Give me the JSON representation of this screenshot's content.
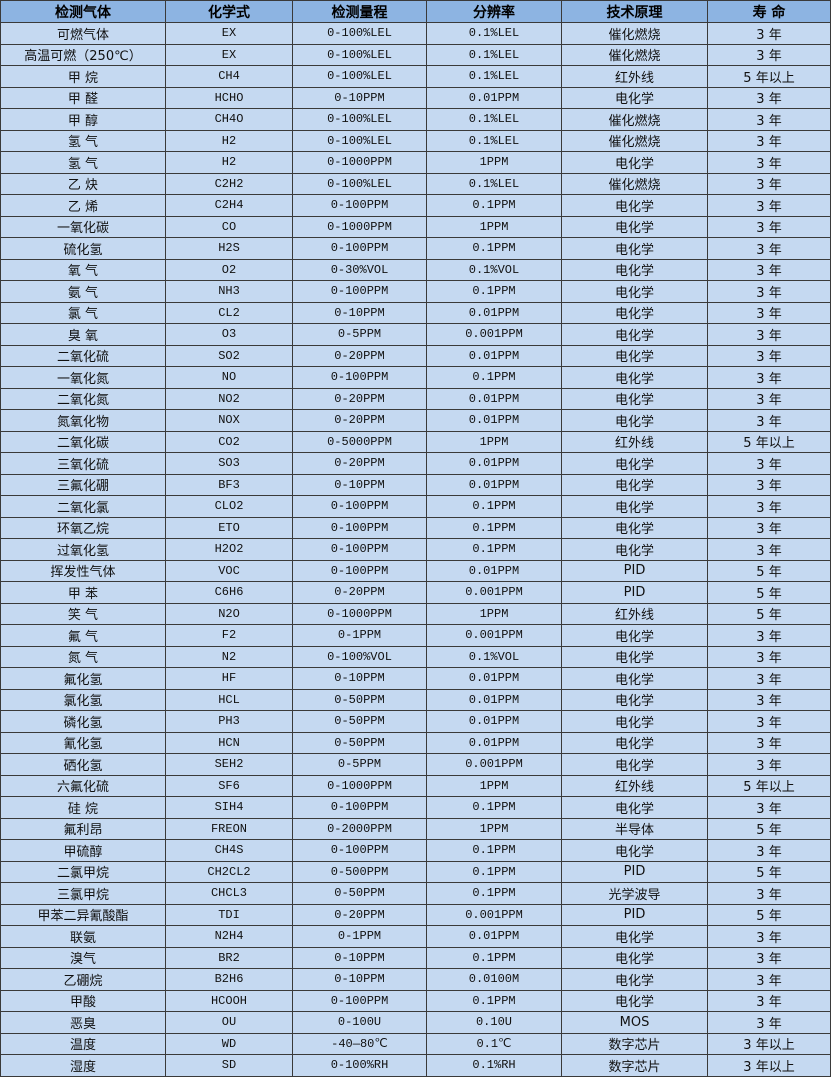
{
  "table": {
    "headers": [
      "检测气体",
      "化学式",
      "检测量程",
      "分辨率",
      "技术原理",
      "寿 命"
    ],
    "rows": [
      [
        "可燃气体",
        "EX",
        "0-100%LEL",
        "0.1%LEL",
        "催化燃烧",
        "3 年"
      ],
      [
        "高温可燃（250℃）",
        "EX",
        "0-100%LEL",
        "0.1%LEL",
        "催化燃烧",
        "3 年"
      ],
      [
        "甲 烷",
        "CH4",
        "0-100%LEL",
        "0.1%LEL",
        "红外线",
        "5 年以上"
      ],
      [
        "甲 醛",
        "HCHO",
        "0-10PPM",
        "0.01PPM",
        "电化学",
        "3 年"
      ],
      [
        "甲 醇",
        "CH4O",
        "0-100%LEL",
        "0.1%LEL",
        "催化燃烧",
        "3 年"
      ],
      [
        "氢 气",
        "H2",
        "0-100%LEL",
        "0.1%LEL",
        "催化燃烧",
        "3 年"
      ],
      [
        "氢 气",
        "H2",
        "0-1000PPM",
        "1PPM",
        "电化学",
        "3 年"
      ],
      [
        "乙 炔",
        "C2H2",
        "0-100%LEL",
        "0.1%LEL",
        "催化燃烧",
        "3 年"
      ],
      [
        "乙 烯",
        "C2H4",
        "0-100PPM",
        "0.1PPM",
        "电化学",
        "3 年"
      ],
      [
        "一氧化碳",
        "CO",
        "0-1000PPM",
        "1PPM",
        "电化学",
        "3 年"
      ],
      [
        "硫化氢",
        "H2S",
        "0-100PPM",
        "0.1PPM",
        "电化学",
        "3 年"
      ],
      [
        "氧 气",
        "O2",
        "0-30%VOL",
        "0.1%VOL",
        "电化学",
        "3 年"
      ],
      [
        "氨 气",
        "NH3",
        "0-100PPM",
        "0.1PPM",
        "电化学",
        "3 年"
      ],
      [
        "氯 气",
        "CL2",
        "0-10PPM",
        "0.01PPM",
        "电化学",
        "3 年"
      ],
      [
        "臭 氧",
        "O3",
        "0-5PPM",
        "0.001PPM",
        "电化学",
        "3 年"
      ],
      [
        "二氧化硫",
        "SO2",
        "0-20PPM",
        "0.01PPM",
        "电化学",
        "3 年"
      ],
      [
        "一氧化氮",
        "NO",
        "0-100PPM",
        "0.1PPM",
        "电化学",
        "3 年"
      ],
      [
        "二氧化氮",
        "NO2",
        "0-20PPM",
        "0.01PPM",
        "电化学",
        "3 年"
      ],
      [
        "氮氧化物",
        "NOX",
        "0-20PPM",
        "0.01PPM",
        "电化学",
        "3 年"
      ],
      [
        "二氧化碳",
        "CO2",
        "0-5000PPM",
        "1PPM",
        "红外线",
        "5 年以上"
      ],
      [
        "三氧化硫",
        "SO3",
        "0-20PPM",
        "0.01PPM",
        "电化学",
        "3 年"
      ],
      [
        "三氟化硼",
        "BF3",
        "0-10PPM",
        "0.01PPM",
        "电化学",
        "3 年"
      ],
      [
        "二氧化氯",
        "CLO2",
        "0-100PPM",
        "0.1PPM",
        "电化学",
        "3 年"
      ],
      [
        "环氧乙烷",
        "ETO",
        "0-100PPM",
        "0.1PPM",
        "电化学",
        "3 年"
      ],
      [
        "过氧化氢",
        "H2O2",
        "0-100PPM",
        "0.1PPM",
        "电化学",
        "3 年"
      ],
      [
        "挥发性气体",
        "VOC",
        "0-100PPM",
        "0.01PPM",
        "PID",
        "5 年"
      ],
      [
        "甲 苯",
        "C6H6",
        "0-20PPM",
        "0.001PPM",
        "PID",
        "5 年"
      ],
      [
        "笑 气",
        "N2O",
        "0-1000PPM",
        "1PPM",
        "红外线",
        "5 年"
      ],
      [
        "氟 气",
        "F2",
        "0-1PPM",
        "0.001PPM",
        "电化学",
        "3 年"
      ],
      [
        "氮 气",
        "N2",
        "0-100%VOL",
        "0.1%VOL",
        "电化学",
        "3 年"
      ],
      [
        "氟化氢",
        "HF",
        "0-10PPM",
        "0.01PPM",
        "电化学",
        "3 年"
      ],
      [
        "氯化氢",
        "HCL",
        "0-50PPM",
        "0.01PPM",
        "电化学",
        "3 年"
      ],
      [
        "磷化氢",
        "PH3",
        "0-50PPM",
        "0.01PPM",
        "电化学",
        "3 年"
      ],
      [
        "氰化氢",
        "HCN",
        "0-50PPM",
        "0.01PPM",
        "电化学",
        "3 年"
      ],
      [
        "硒化氢",
        "SEH2",
        "0-5PPM",
        "0.001PPM",
        "电化学",
        "3 年"
      ],
      [
        "六氟化硫",
        "SF6",
        "0-1000PPM",
        "1PPM",
        "红外线",
        "5 年以上"
      ],
      [
        "硅 烷",
        "SIH4",
        "0-100PPM",
        "0.1PPM",
        "电化学",
        "3 年"
      ],
      [
        "氟利昂",
        "FREON",
        "0-2000PPM",
        "1PPM",
        "半导体",
        "5 年"
      ],
      [
        "甲硫醇",
        "CH4S",
        "0-100PPM",
        "0.1PPM",
        "电化学",
        "3 年"
      ],
      [
        "二氯甲烷",
        "CH2CL2",
        "0-500PPM",
        "0.1PPM",
        "PID",
        "5 年"
      ],
      [
        "三氯甲烷",
        "CHCL3",
        "0-50PPM",
        "0.1PPM",
        "光学波导",
        "3 年"
      ],
      [
        "甲苯二异氰酸酯",
        "TDI",
        "0-20PPM",
        "0.001PPM",
        "PID",
        "5 年"
      ],
      [
        "联氨",
        "N2H4",
        "0-1PPM",
        "0.01PPM",
        "电化学",
        "3 年"
      ],
      [
        "溴气",
        "BR2",
        "0-10PPM",
        "0.1PPM",
        "电化学",
        "3 年"
      ],
      [
        "乙硼烷",
        "B2H6",
        "0-10PPM",
        "0.0100M",
        "电化学",
        "3 年"
      ],
      [
        "甲酸",
        "HCOOH",
        "0-100PPM",
        "0.1PPM",
        "电化学",
        "3 年"
      ],
      [
        "恶臭",
        "OU",
        "0-100U",
        "0.10U",
        "MOS",
        "3 年"
      ],
      [
        "温度",
        "WD",
        "-40—80℃",
        "0.1℃",
        "数字芯片",
        "3 年以上"
      ],
      [
        "湿度",
        "SD",
        "0-100%RH",
        "0.1%RH",
        "数字芯片",
        "3 年以上"
      ]
    ]
  },
  "colors": {
    "header_bg": "#8db4e2",
    "row_bg": "#c5d9f1",
    "border": "#3a3a3a"
  }
}
